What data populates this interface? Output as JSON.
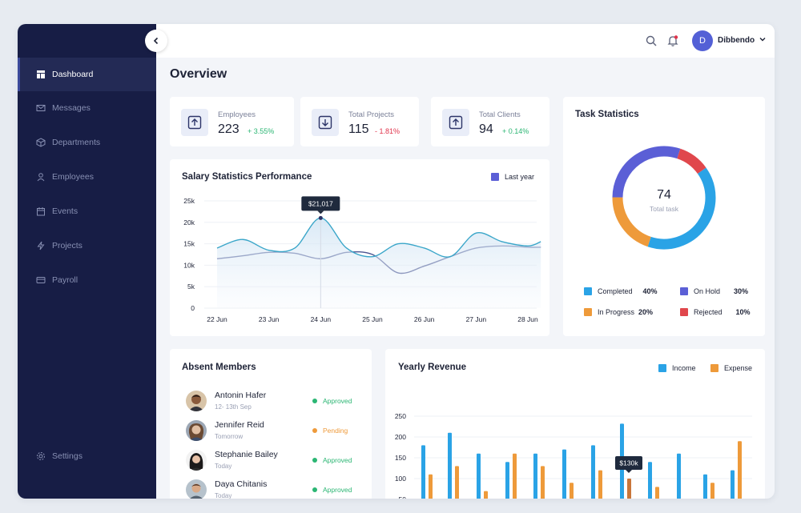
{
  "sidebar": {
    "items": [
      {
        "label": "Dashboard",
        "icon": "dashboard-icon",
        "active": true
      },
      {
        "label": "Messages",
        "icon": "mail-icon"
      },
      {
        "label": "Departments",
        "icon": "cube-icon"
      },
      {
        "label": "Employees",
        "icon": "user-icon"
      },
      {
        "label": "Events",
        "icon": "calendar-icon"
      },
      {
        "label": "Projects",
        "icon": "bolt-icon"
      },
      {
        "label": "Payroll",
        "icon": "card-icon"
      }
    ],
    "settings_label": "Settings"
  },
  "header": {
    "user": {
      "initial": "D",
      "name": "Dibbendo"
    }
  },
  "page": {
    "title": "Overview"
  },
  "stats": [
    {
      "label": "Employees",
      "value": "223",
      "delta": "+ 3.55%",
      "trend": "up",
      "icon": "arrow-up-box-icon"
    },
    {
      "label": "Total Projects",
      "value": "115",
      "delta": "- 1.81%",
      "trend": "down",
      "icon": "arrow-down-box-icon"
    },
    {
      "label": "Total Clients",
      "value": "94",
      "delta": "+ 0.14%",
      "trend": "up",
      "icon": "arrow-up-box-icon"
    }
  ],
  "task_stats": {
    "title": "Task Statistics",
    "total": "74",
    "total_label": "Total task",
    "items": [
      {
        "label": "Completed",
        "percent": "40%",
        "color": "#2aa3e6"
      },
      {
        "label": "On Hold",
        "percent": "30%",
        "color": "#5b5fd6"
      },
      {
        "label": "In Progress",
        "percent": "20%",
        "color": "#ee9a3a"
      },
      {
        "label": "Rejected",
        "percent": "10%",
        "color": "#e0474c"
      }
    ]
  },
  "salary": {
    "title": "Salary Statistics Performance",
    "legend": "Last year",
    "tooltip": "$21,017"
  },
  "absent": {
    "title": "Absent Members",
    "members": [
      {
        "name": "Antonin Hafer",
        "sub": "12- 13th Sep",
        "status": "Approved"
      },
      {
        "name": "Jennifer Reid",
        "sub": "Tomorrow",
        "status": "Pending"
      },
      {
        "name": "Stephanie Bailey",
        "sub": "Today",
        "status": "Approved"
      },
      {
        "name": "Daya Chitanis",
        "sub": "Today",
        "status": "Approved"
      }
    ]
  },
  "revenue": {
    "title": "Yearly Revenue",
    "tooltip": "$130k"
  },
  "colors": {
    "sidebar": "#171d45",
    "accent": "#5360d6",
    "income": "#2aa3e6",
    "expense": "#ee9a3a",
    "line_primary": "#3aa6c9",
    "line_secondary": "#4c5591"
  },
  "chart_data": [
    {
      "type": "line",
      "title": "Salary Statistics Performance",
      "categories": [
        "22 Jun",
        "23 Jun",
        "24 Jun",
        "25 Jun",
        "26 Jun",
        "27 Jun",
        "28 Jun"
      ],
      "yticks": [
        "0",
        "5k",
        "10k",
        "15k",
        "20k",
        "25k"
      ],
      "ylim": [
        0,
        25000
      ],
      "x": [
        0,
        0.5,
        1,
        1.5,
        2,
        2.5,
        3,
        3.5,
        4,
        4.5,
        5,
        5.5,
        6,
        6.25
      ],
      "series": [
        {
          "name": "Last year",
          "values": [
            14000,
            16000,
            13500,
            14000,
            21017,
            14000,
            12000,
            15000,
            14000,
            12000,
            17500,
            15500,
            14500,
            15500
          ]
        },
        {
          "values": [
            11500,
            12200,
            13000,
            12800,
            11500,
            13000,
            12500,
            8200,
            9800,
            12000,
            14000,
            14500,
            14200,
            14200
          ]
        }
      ],
      "legend_position": "top-right",
      "grid": true
    },
    {
      "type": "bar",
      "title": "Yearly Revenue",
      "yticks": [
        "0",
        "50",
        "100",
        "150",
        "200",
        "250"
      ],
      "ylim": [
        0,
        250
      ],
      "categories": [
        "",
        "",
        "",
        "",
        "",
        "",
        "",
        "",
        "",
        "",
        "",
        "",
        "",
        ""
      ],
      "series": [
        {
          "name": "Income",
          "values": [
            180,
            210,
            160,
            140,
            160,
            170,
            180,
            232,
            140,
            160,
            110,
            120,
            160,
            0
          ]
        },
        {
          "name": "Expense",
          "values": [
            110,
            130,
            70,
            160,
            130,
            90,
            120,
            100,
            80,
            40,
            90,
            190,
            0,
            0
          ]
        }
      ],
      "legend_position": "top-right",
      "grid": true
    },
    {
      "type": "pie",
      "title": "Task Statistics",
      "labels": [
        "Completed",
        "On Hold",
        "In Progress",
        "Rejected"
      ],
      "values": [
        40,
        30,
        20,
        10
      ]
    }
  ]
}
